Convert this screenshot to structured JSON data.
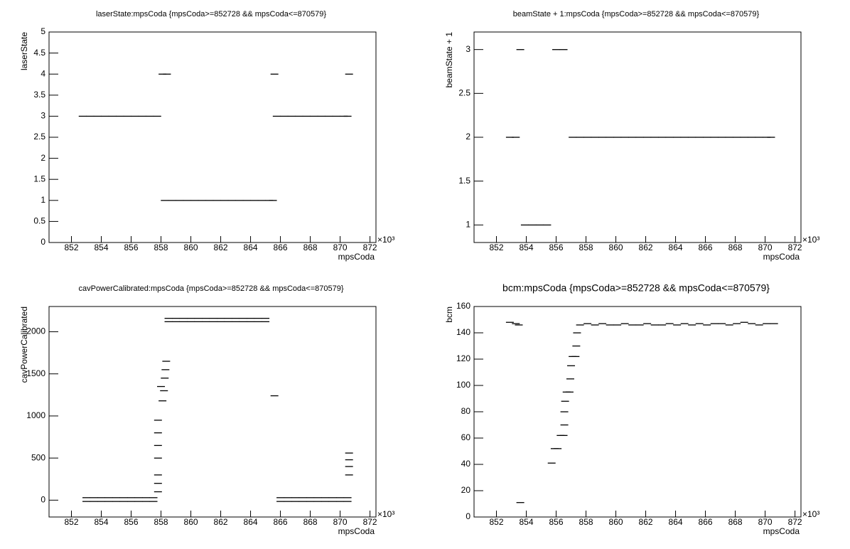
{
  "chart_data": [
    {
      "type": "scatter",
      "title": "laserState:mpsCoda {mpsCoda>=852728 && mpsCoda<=870579}",
      "x_label": "mpsCoda",
      "y_label": "laserState",
      "x_multiplier": "×10³",
      "xlim": [
        850.5,
        872.4
      ],
      "xticks": [
        852,
        854,
        856,
        858,
        860,
        862,
        864,
        866,
        868,
        870,
        872
      ],
      "ylim": [
        0,
        5
      ],
      "yticks": [
        0,
        0.5,
        1,
        1.5,
        2,
        2.5,
        3,
        3.5,
        4,
        4.5,
        5
      ],
      "color": "#000000",
      "x": [
        852.75,
        853.25,
        853.75,
        854.25,
        854.75,
        855.25,
        855.75,
        856.25,
        856.75,
        857.25,
        857.75,
        858.1,
        858.4,
        858.25,
        858.75,
        859.25,
        859.75,
        860.25,
        860.75,
        861.25,
        861.75,
        862.25,
        862.75,
        863.25,
        863.75,
        864.25,
        864.75,
        865.25,
        865.5,
        865.6,
        865.75,
        866.25,
        866.75,
        867.25,
        867.75,
        868.25,
        868.75,
        869.25,
        869.75,
        870.25,
        870.5,
        870.6
      ],
      "values": [
        3,
        3,
        3,
        3,
        3,
        3,
        3,
        3,
        3,
        3,
        3,
        4,
        4,
        1,
        1,
        1,
        1,
        1,
        1,
        1,
        1,
        1,
        1,
        1,
        1,
        1,
        1,
        1,
        1,
        4,
        3,
        3,
        3,
        3,
        3,
        3,
        3,
        3,
        3,
        3,
        3,
        4
      ]
    },
    {
      "type": "scatter",
      "title": "beamState + 1:mpsCoda {mpsCoda>=852728 && mpsCoda<=870579}",
      "x_label": "mpsCoda",
      "y_label": "beamState + 1",
      "x_multiplier": "×10³",
      "xlim": [
        850.5,
        872.4
      ],
      "xticks": [
        852,
        854,
        856,
        858,
        860,
        862,
        864,
        866,
        868,
        870,
        872
      ],
      "ylim": [
        0.8,
        3.2
      ],
      "yticks": [
        1,
        1.5,
        2,
        2.5,
        3
      ],
      "color": "#000000",
      "x": [
        852.9,
        853.3,
        853.6,
        853.9,
        854.4,
        854.9,
        855.4,
        856.0,
        856.5,
        857.1,
        857.6,
        858.1,
        858.6,
        859.1,
        859.6,
        860.1,
        860.6,
        861.1,
        861.6,
        862.1,
        862.6,
        863.1,
        863.6,
        864.1,
        864.6,
        865.1,
        865.6,
        866.1,
        866.6,
        867.1,
        867.6,
        868.1,
        868.6,
        869.1,
        869.6,
        870.1,
        870.4
      ],
      "values": [
        2,
        2,
        3,
        1,
        1,
        1,
        1,
        3,
        3,
        2,
        2,
        2,
        2,
        2,
        2,
        2,
        2,
        2,
        2,
        2,
        2,
        2,
        2,
        2,
        2,
        2,
        2,
        2,
        2,
        2,
        2,
        2,
        2,
        2,
        2,
        2,
        2
      ]
    },
    {
      "type": "scatter",
      "title": "cavPowerCalibrated:mpsCoda {mpsCoda>=852728 && mpsCoda<=870579}",
      "x_label": "mpsCoda",
      "y_label": "cavPowerCalibrated",
      "x_multiplier": "×10³",
      "xlim": [
        850.5,
        872.4
      ],
      "xticks": [
        852,
        854,
        856,
        858,
        860,
        862,
        864,
        866,
        868,
        870,
        872
      ],
      "ylim": [
        -200,
        2300
      ],
      "yticks": [
        0,
        500,
        1000,
        1500,
        2000
      ],
      "color": "#000000",
      "x": [
        853.0,
        853.5,
        854.0,
        854.5,
        855.0,
        855.5,
        856.0,
        856.5,
        857.0,
        857.5,
        853.0,
        853.5,
        854.0,
        854.5,
        855.0,
        855.5,
        856.0,
        856.5,
        857.0,
        857.5,
        857.8,
        857.8,
        857.8,
        857.8,
        857.8,
        857.8,
        857.8,
        858.0,
        858.1,
        858.2,
        858.25,
        858.3,
        858.35,
        858.5,
        859.0,
        859.5,
        860.0,
        860.5,
        861.0,
        861.5,
        862.0,
        862.5,
        863.0,
        863.5,
        864.0,
        864.5,
        865.0,
        858.5,
        859.0,
        859.5,
        860.0,
        860.5,
        861.0,
        861.5,
        862.0,
        862.5,
        863.0,
        863.5,
        864.0,
        864.5,
        865.0,
        865.6,
        866.0,
        866.5,
        867.0,
        867.5,
        868.0,
        868.5,
        869.0,
        869.5,
        870.0,
        870.5,
        866.0,
        866.5,
        867.0,
        867.5,
        868.0,
        868.5,
        869.0,
        869.5,
        870.0,
        870.5,
        870.6,
        870.6,
        870.6,
        870.6
      ],
      "values": [
        30,
        30,
        30,
        30,
        30,
        30,
        30,
        30,
        30,
        30,
        -15,
        -15,
        -15,
        -15,
        -15,
        -15,
        -15,
        -15,
        -15,
        -15,
        100,
        200,
        300,
        500,
        650,
        800,
        950,
        1350,
        1180,
        1300,
        1450,
        1550,
        1650,
        2160,
        2160,
        2160,
        2160,
        2160,
        2160,
        2160,
        2160,
        2160,
        2160,
        2160,
        2160,
        2160,
        2160,
        2120,
        2120,
        2120,
        2120,
        2120,
        2120,
        2120,
        2120,
        2120,
        2120,
        2120,
        2120,
        2120,
        2120,
        1240,
        30,
        30,
        30,
        30,
        30,
        30,
        30,
        30,
        30,
        30,
        -15,
        -15,
        -15,
        -15,
        -15,
        -15,
        -15,
        -15,
        -15,
        -15,
        300,
        400,
        480,
        560
      ]
    },
    {
      "type": "scatter",
      "title": "bcm:mpsCoda {mpsCoda>=852728 && mpsCoda<=870579}",
      "x_label": "mpsCoda",
      "y_label": "bcm",
      "x_multiplier": "×10³",
      "xlim": [
        850.5,
        872.4
      ],
      "xticks": [
        852,
        854,
        856,
        858,
        860,
        862,
        864,
        866,
        868,
        870,
        872
      ],
      "ylim": [
        0,
        160
      ],
      "yticks": [
        0,
        20,
        40,
        60,
        80,
        100,
        120,
        140,
        160
      ],
      "color": "#000000",
      "x": [
        852.9,
        853.3,
        853.5,
        853.6,
        855.7,
        855.9,
        856.1,
        856.3,
        856.5,
        856.55,
        856.55,
        856.6,
        856.7,
        856.9,
        856.95,
        857.0,
        857.1,
        857.3,
        857.35,
        857.4,
        857.6,
        858.1,
        858.6,
        859.1,
        859.6,
        860.1,
        860.6,
        861.1,
        861.6,
        862.1,
        862.6,
        863.1,
        863.6,
        864.1,
        864.6,
        865.1,
        865.6,
        866.1,
        866.6,
        867.1,
        867.6,
        868.1,
        868.6,
        869.1,
        869.6,
        870.1,
        870.6
      ],
      "values": [
        148,
        147,
        146,
        11,
        41,
        52,
        52,
        62,
        62,
        70,
        80,
        88,
        95,
        95,
        105,
        115,
        122,
        122,
        130,
        140,
        146,
        147,
        146,
        147,
        146,
        146,
        147,
        146,
        146,
        147,
        146,
        146,
        147,
        146,
        147,
        146,
        147,
        146,
        147,
        147,
        146,
        147,
        148,
        147,
        146,
        147,
        147
      ]
    }
  ]
}
